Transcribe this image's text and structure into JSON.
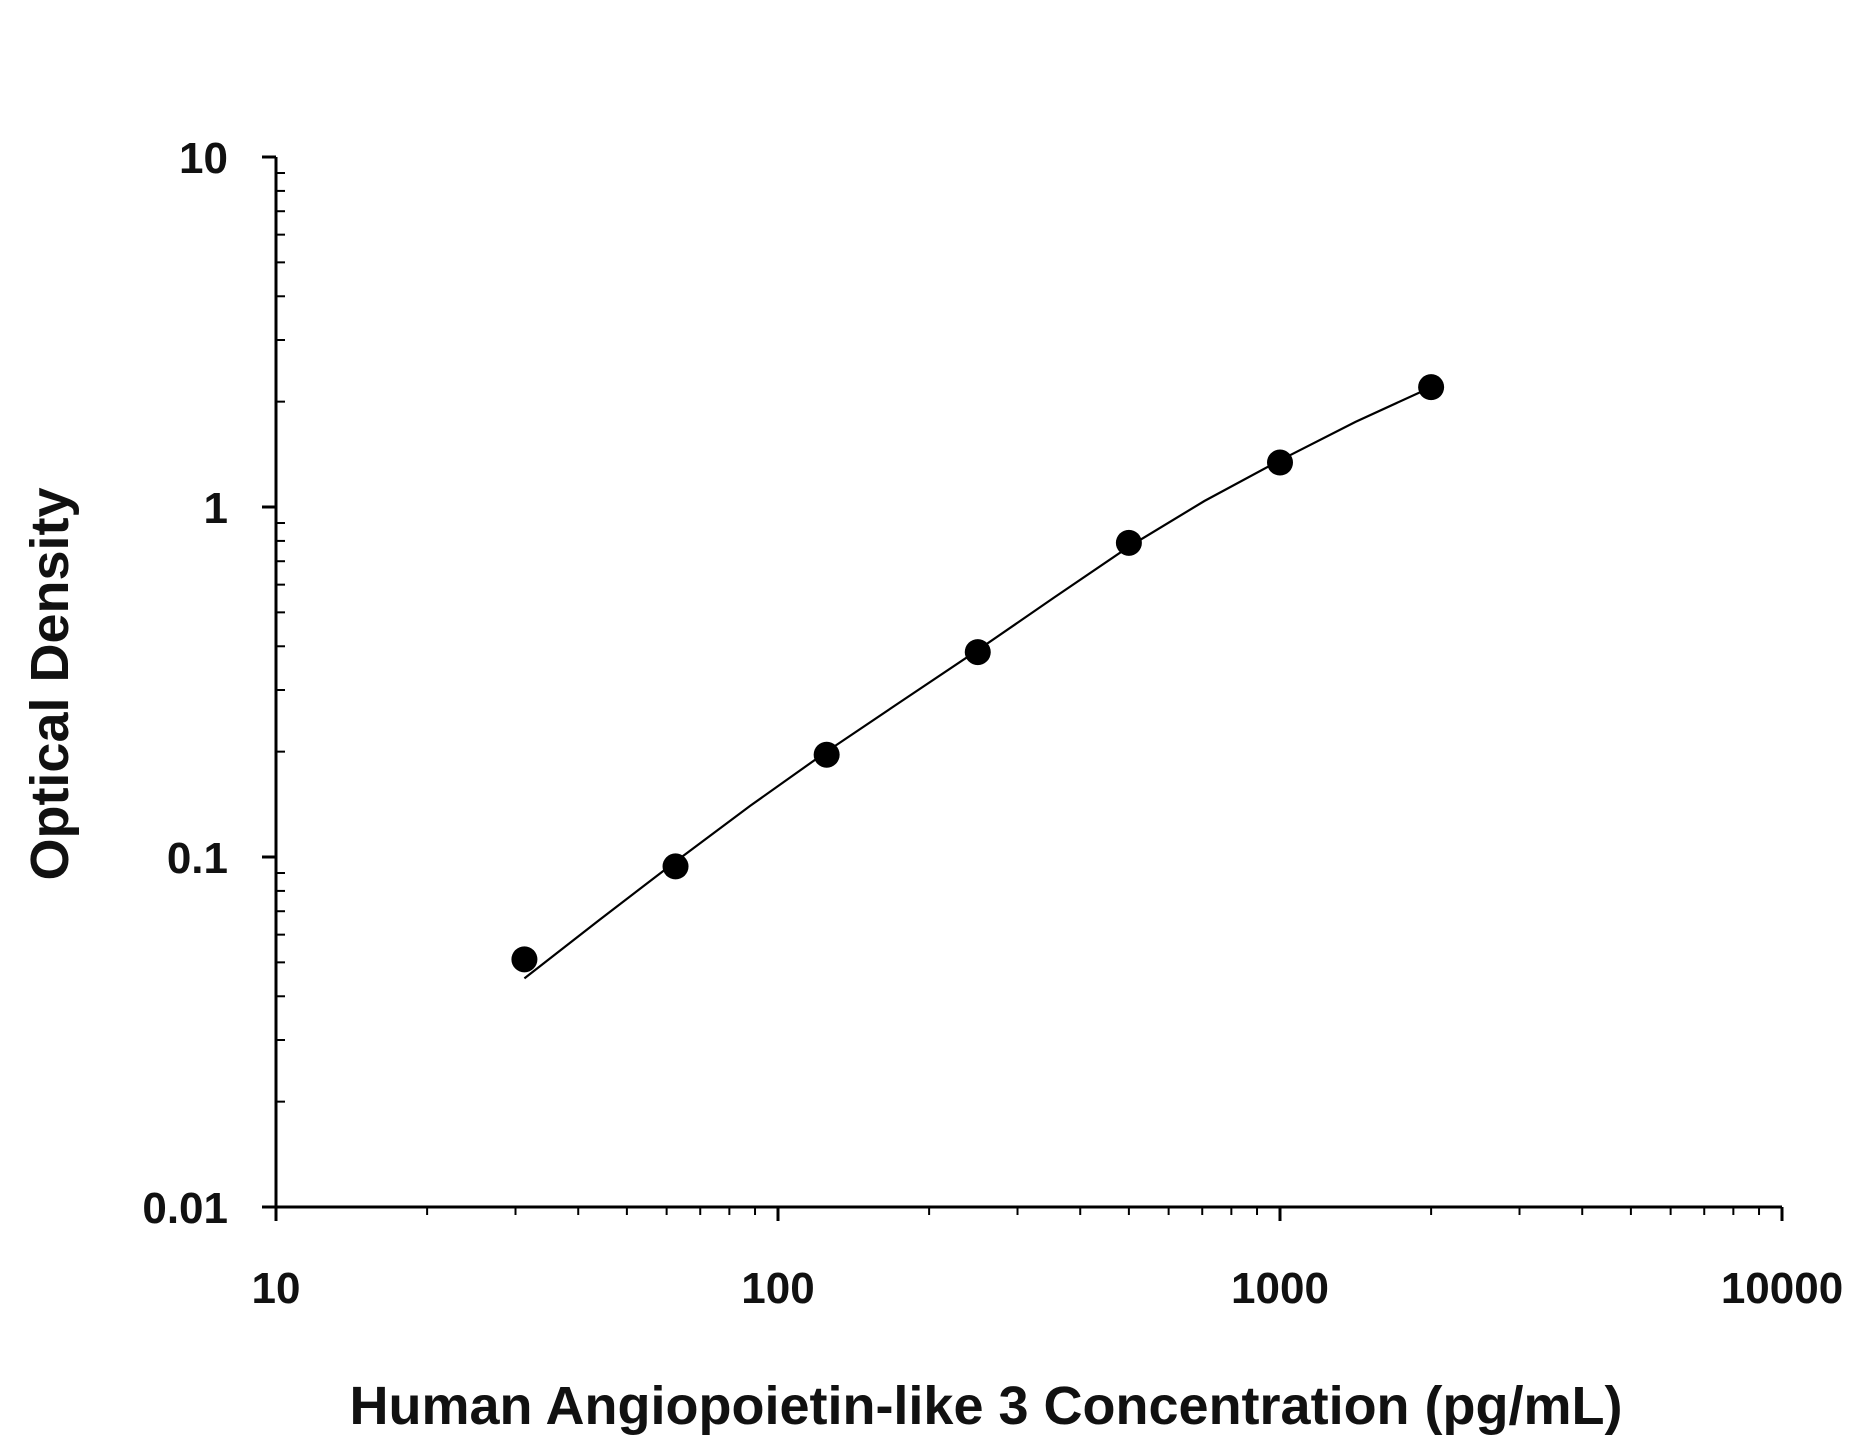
{
  "chart_data": {
    "type": "scatter",
    "title": "",
    "xlabel": "Human Angiopoietin-like 3 Concentration (pg/mL)",
    "ylabel": "Optical Density",
    "x_scale": "log",
    "y_scale": "log",
    "xlim": [
      10,
      10000
    ],
    "ylim": [
      0.01,
      10
    ],
    "x_ticks": [
      "10",
      "100",
      "1000",
      "10000"
    ],
    "y_ticks": [
      "0.01",
      "0.1",
      "1",
      "10"
    ],
    "grid": false,
    "legend": "none",
    "series": [
      {
        "points": [
          {
            "x": 31.25,
            "y": 0.051
          },
          {
            "x": 62.5,
            "y": 0.094
          },
          {
            "x": 125,
            "y": 0.196
          },
          {
            "x": 250,
            "y": 0.385
          },
          {
            "x": 500,
            "y": 0.79
          },
          {
            "x": 1000,
            "y": 1.34
          },
          {
            "x": 2000,
            "y": 2.2
          }
        ],
        "fit_curve": [
          {
            "x": 31.25,
            "y": 0.045
          },
          {
            "x": 44,
            "y": 0.066
          },
          {
            "x": 62.5,
            "y": 0.097
          },
          {
            "x": 88,
            "y": 0.14
          },
          {
            "x": 125,
            "y": 0.2
          },
          {
            "x": 177,
            "y": 0.28
          },
          {
            "x": 250,
            "y": 0.39
          },
          {
            "x": 354,
            "y": 0.55
          },
          {
            "x": 500,
            "y": 0.77
          },
          {
            "x": 707,
            "y": 1.04
          },
          {
            "x": 1000,
            "y": 1.36
          },
          {
            "x": 1414,
            "y": 1.75
          },
          {
            "x": 2000,
            "y": 2.2
          }
        ]
      }
    ],
    "colors": {
      "axis": "#000000",
      "points": "#000000",
      "curve": "#000000",
      "text": "#111111"
    }
  }
}
